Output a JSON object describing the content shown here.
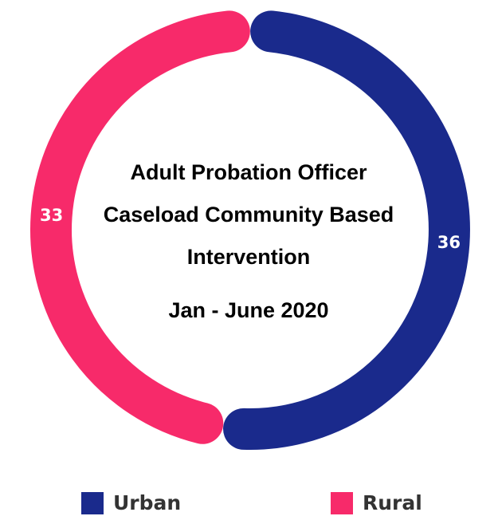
{
  "chart_data": {
    "type": "pie",
    "style": "donut",
    "title": [
      "Adult Probation Officer",
      "Caseload Community Based",
      "Intervention"
    ],
    "subtitle": "Jan - June 2020",
    "slices": [
      {
        "name": "Urban",
        "value": 36,
        "label": "36",
        "color": "#1a2a8c"
      },
      {
        "name": "Rural",
        "value": 33,
        "label": "33",
        "color": "#f72a6a"
      }
    ],
    "legend_position": "bottom"
  },
  "legend": {
    "items": [
      {
        "label": "Urban",
        "color": "#1a2a8c"
      },
      {
        "label": "Rural",
        "color": "#f72a6a"
      }
    ]
  }
}
